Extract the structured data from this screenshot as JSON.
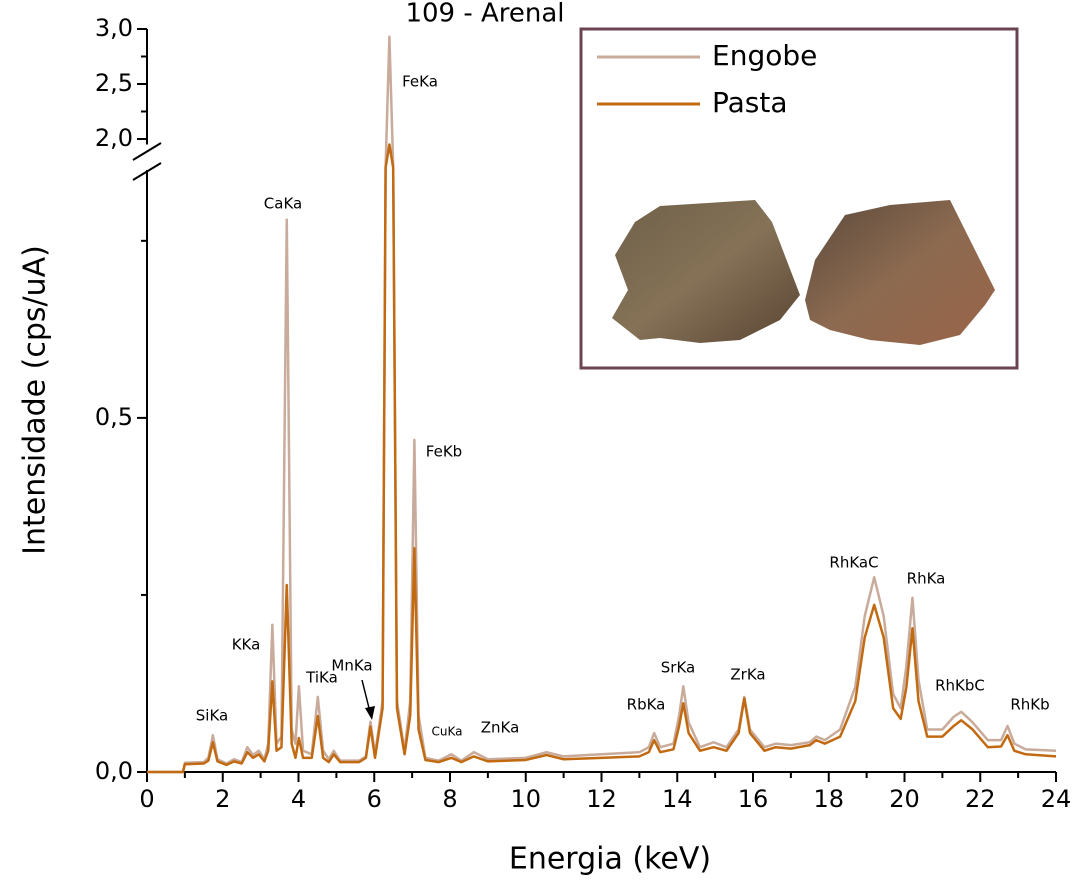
{
  "chart_data": {
    "type": "line",
    "title": "109 - Arenal",
    "x_label": "Energia (keV)",
    "y_label": "Intensidade (cps/uA)",
    "xlim": [
      0,
      24
    ],
    "xticks": [
      0,
      2,
      4,
      6,
      8,
      10,
      12,
      14,
      16,
      18,
      20,
      22,
      24
    ],
    "minor_xticks": [
      1,
      3,
      5,
      7,
      9,
      11,
      13,
      15,
      17,
      19,
      21,
      23
    ],
    "y_segments": [
      {
        "ylim": [
          0,
          0.85
        ],
        "yticks": [
          {
            "value": 0,
            "label": "0,0"
          },
          {
            "value": 0.5,
            "label": "0,5"
          }
        ],
        "minor_yticks": [
          0.25,
          0.75
        ]
      },
      {
        "ylim": [
          1.95,
          3.0
        ],
        "yticks": [
          {
            "value": 2.0,
            "label": "2,0"
          },
          {
            "value": 2.5,
            "label": "2,5"
          },
          {
            "value": 3.0,
            "label": "3,0"
          }
        ],
        "minor_yticks": [
          2.25,
          2.75
        ]
      }
    ],
    "legend_position": "upper right",
    "x": [
      0,
      0.95,
      1.0,
      1.5,
      1.62,
      1.74,
      1.86,
      2.1,
      2.3,
      2.5,
      2.65,
      2.8,
      2.95,
      3.1,
      3.2,
      3.31,
      3.42,
      3.55,
      3.69,
      3.82,
      3.92,
      4.01,
      4.12,
      4.35,
      4.51,
      4.65,
      4.8,
      4.93,
      5.1,
      5.6,
      5.78,
      5.9,
      6.02,
      6.22,
      6.3,
      6.4,
      6.5,
      6.6,
      6.8,
      6.95,
      7.06,
      7.17,
      7.35,
      7.7,
      8.04,
      8.3,
      8.63,
      9.0,
      10.0,
      10.55,
      11.0,
      12.0,
      13.0,
      13.25,
      13.39,
      13.55,
      13.9,
      14.05,
      14.16,
      14.3,
      14.6,
      14.96,
      15.3,
      15.62,
      15.77,
      15.92,
      16.3,
      16.6,
      17.0,
      17.5,
      17.67,
      17.9,
      18.3,
      18.7,
      18.95,
      19.2,
      19.45,
      19.7,
      19.9,
      20.05,
      20.21,
      20.37,
      20.6,
      21.0,
      21.3,
      21.5,
      21.8,
      22.2,
      22.55,
      22.72,
      22.9,
      23.2,
      24.0
    ],
    "series": [
      {
        "name": "Engobe",
        "color": "#c8ab9b",
        "values": [
          0,
          0,
          0.013,
          0.014,
          0.02,
          0.052,
          0.018,
          0.012,
          0.018,
          0.014,
          0.035,
          0.024,
          0.03,
          0.018,
          0.04,
          0.208,
          0.04,
          0.05,
          0.78,
          0.06,
          0.04,
          0.121,
          0.03,
          0.025,
          0.106,
          0.03,
          0.018,
          0.03,
          0.016,
          0.016,
          0.022,
          0.071,
          0.025,
          0.1,
          1.0,
          2.93,
          1.0,
          0.1,
          0.03,
          0.1,
          0.469,
          0.08,
          0.02,
          0.016,
          0.025,
          0.016,
          0.028,
          0.018,
          0.02,
          0.028,
          0.022,
          0.025,
          0.028,
          0.035,
          0.055,
          0.035,
          0.04,
          0.08,
          0.121,
          0.07,
          0.035,
          0.042,
          0.035,
          0.06,
          0.106,
          0.06,
          0.035,
          0.04,
          0.038,
          0.042,
          0.05,
          0.045,
          0.06,
          0.12,
          0.22,
          0.275,
          0.22,
          0.11,
          0.09,
          0.15,
          0.246,
          0.13,
          0.06,
          0.06,
          0.078,
          0.085,
          0.07,
          0.045,
          0.045,
          0.065,
          0.04,
          0.032,
          0.03
        ]
      },
      {
        "name": "Pasta",
        "color": "#c26a12",
        "values": [
          0,
          0,
          0.011,
          0.012,
          0.016,
          0.042,
          0.015,
          0.01,
          0.015,
          0.012,
          0.028,
          0.02,
          0.025,
          0.015,
          0.03,
          0.128,
          0.03,
          0.035,
          0.264,
          0.04,
          0.02,
          0.048,
          0.02,
          0.02,
          0.079,
          0.02,
          0.014,
          0.025,
          0.014,
          0.014,
          0.02,
          0.064,
          0.02,
          0.09,
          0.95,
          1.95,
          0.95,
          0.09,
          0.025,
          0.08,
          0.316,
          0.06,
          0.017,
          0.014,
          0.02,
          0.014,
          0.022,
          0.015,
          0.017,
          0.024,
          0.018,
          0.02,
          0.022,
          0.028,
          0.045,
          0.028,
          0.032,
          0.065,
          0.097,
          0.055,
          0.03,
          0.035,
          0.03,
          0.055,
          0.104,
          0.055,
          0.03,
          0.035,
          0.033,
          0.038,
          0.045,
          0.04,
          0.05,
          0.1,
          0.19,
          0.236,
          0.19,
          0.09,
          0.075,
          0.12,
          0.203,
          0.1,
          0.05,
          0.05,
          0.065,
          0.073,
          0.06,
          0.035,
          0.036,
          0.052,
          0.03,
          0.025,
          0.022
        ]
      }
    ],
    "annotations": [
      "SiKa",
      "KKa",
      "CaKa",
      "TiKa",
      "MnKa",
      "FeKa",
      "FeKb",
      "CuKa",
      "ZnKa",
      "RbKa",
      "SrKa",
      "ZrKa",
      "RhKaC",
      "RhKa",
      "RhKbC",
      "RhKb"
    ]
  }
}
